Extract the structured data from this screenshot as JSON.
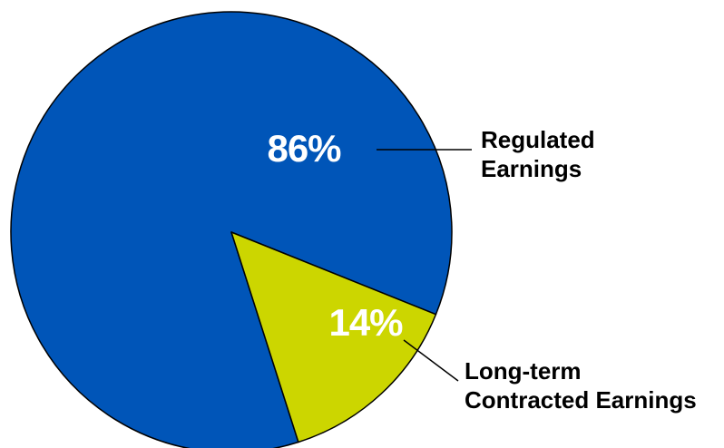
{
  "chart_data": {
    "type": "pie",
    "slices": [
      {
        "label_lines": [
          "Regulated",
          "Earnings"
        ],
        "value": 86,
        "value_label": "86%",
        "color": "#0055B8"
      },
      {
        "label_lines": [
          "Long-term",
          "Contracted Earnings"
        ],
        "value": 14,
        "value_label": "14%",
        "color": "#CCD600"
      }
    ],
    "stroke_color": "#000000",
    "legend": "none (callout labels)"
  }
}
